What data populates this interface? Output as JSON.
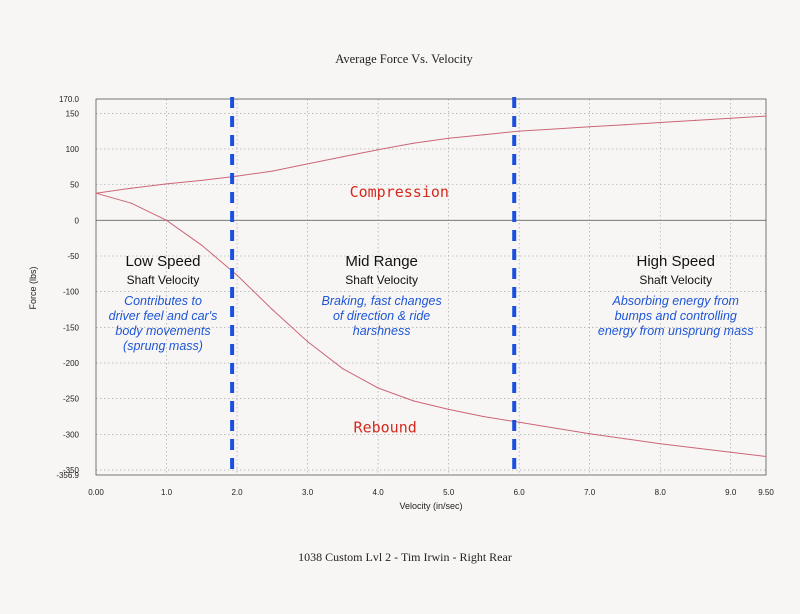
{
  "page": {
    "title": "Average Force Vs. Velocity",
    "footer": "1038 Custom Lvl 2 - Tim Irwin - Right Rear"
  },
  "chart_data": {
    "type": "line",
    "title": "Average Force Vs. Velocity",
    "xlabel": "Velocity (in/sec)",
    "ylabel": "Force (lbs)",
    "xlim": [
      0,
      9.5
    ],
    "ylim": [
      -356.9,
      170.0
    ],
    "grid": true,
    "x_ticks": [
      {
        "value": 0,
        "label": "0.00"
      },
      {
        "value": 1,
        "label": "1.0"
      },
      {
        "value": 2,
        "label": "2.0"
      },
      {
        "value": 3,
        "label": "3.0"
      },
      {
        "value": 4,
        "label": "4.0"
      },
      {
        "value": 5,
        "label": "5.0"
      },
      {
        "value": 6,
        "label": "6.0"
      },
      {
        "value": 7,
        "label": "7.0"
      },
      {
        "value": 8,
        "label": "8.0"
      },
      {
        "value": 9,
        "label": "9.0"
      },
      {
        "value": 9.5,
        "label": "9.50"
      }
    ],
    "y_ticks": [
      {
        "value": 170.0,
        "label": "170.0"
      },
      {
        "value": 150,
        "label": "150"
      },
      {
        "value": 100,
        "label": "100"
      },
      {
        "value": 50,
        "label": "50"
      },
      {
        "value": 0,
        "label": "0"
      },
      {
        "value": -50,
        "label": "-50"
      },
      {
        "value": -100,
        "label": "-100"
      },
      {
        "value": -150,
        "label": "-150"
      },
      {
        "value": -200,
        "label": "-200"
      },
      {
        "value": -250,
        "label": "-250"
      },
      {
        "value": -300,
        "label": "-300"
      },
      {
        "value": -350,
        "label": "-350"
      },
      {
        "value": -356.9,
        "label": "-356.9"
      }
    ],
    "series": [
      {
        "name": "Compression",
        "color": "#cc6677",
        "points": [
          [
            0,
            38
          ],
          [
            0.5,
            45
          ],
          [
            1,
            51
          ],
          [
            1.5,
            56
          ],
          [
            2,
            62
          ],
          [
            2.5,
            69
          ],
          [
            3,
            79
          ],
          [
            3.5,
            89
          ],
          [
            4,
            99
          ],
          [
            4.5,
            108
          ],
          [
            5,
            115
          ],
          [
            5.5,
            120
          ],
          [
            6,
            125
          ],
          [
            6.5,
            128
          ],
          [
            7,
            131
          ],
          [
            7.5,
            134
          ],
          [
            8,
            137
          ],
          [
            8.5,
            140
          ],
          [
            9,
            143
          ],
          [
            9.5,
            146
          ]
        ]
      },
      {
        "name": "Rebound",
        "color": "#cc6677",
        "points": [
          [
            0,
            38
          ],
          [
            0.5,
            24
          ],
          [
            1,
            0
          ],
          [
            1.5,
            -35
          ],
          [
            2,
            -77
          ],
          [
            2.5,
            -125
          ],
          [
            3,
            -170
          ],
          [
            3.5,
            -208
          ],
          [
            4,
            -235
          ],
          [
            4.5,
            -253
          ],
          [
            5,
            -265
          ],
          [
            5.5,
            -275
          ],
          [
            6,
            -283
          ],
          [
            6.5,
            -291
          ],
          [
            7,
            -299
          ],
          [
            7.5,
            -306
          ],
          [
            8,
            -313
          ],
          [
            8.5,
            -319
          ],
          [
            9,
            -325
          ],
          [
            9.5,
            -331
          ]
        ]
      }
    ],
    "dividers": [
      {
        "x": 1.93,
        "color": "#1a4fe0"
      },
      {
        "x": 5.93,
        "color": "#1a4fe0"
      }
    ],
    "annotations": {
      "compression": {
        "text": "Compression",
        "color": "#d42a1f"
      },
      "rebound": {
        "text": "Rebound",
        "color": "#d42a1f"
      },
      "zones": [
        {
          "title": "Low Speed",
          "subtitle": "Shaft Velocity",
          "desc": [
            "Contributes to",
            "driver feel and car's",
            "body movements",
            "(sprung mass)"
          ]
        },
        {
          "title": "Mid Range",
          "subtitle": "Shaft Velocity",
          "desc": [
            "Braking, fast changes",
            "of direction  & ride",
            "harshness"
          ]
        },
        {
          "title": "High Speed",
          "subtitle": "Shaft Velocity",
          "desc": [
            "Absorbing energy from",
            "bumps and controlling",
            "energy from unsprung mass"
          ]
        }
      ],
      "desc_color": "#1e55d6"
    }
  }
}
